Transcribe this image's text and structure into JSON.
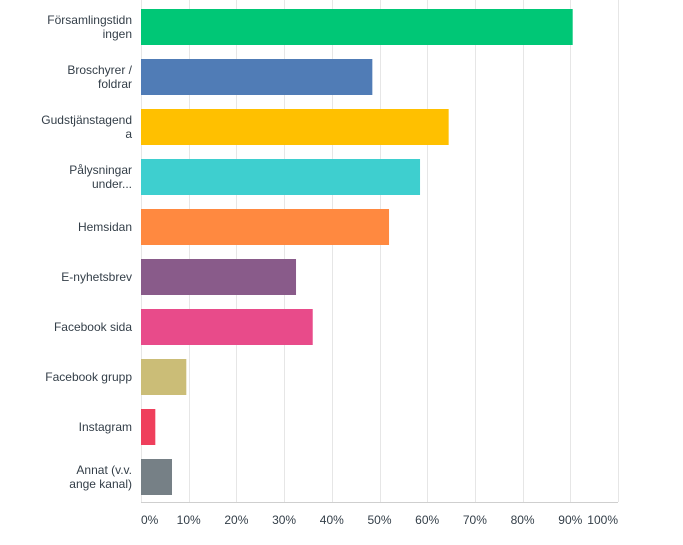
{
  "chart_data": {
    "type": "bar",
    "orientation": "horizontal",
    "categories": [
      [
        "Församlingstidn",
        "ingen"
      ],
      [
        "Broschyrer /",
        "foldrar"
      ],
      [
        "Gudstjänstagend",
        "a"
      ],
      [
        "Pålysningar",
        "under..."
      ],
      [
        "Hemsidan"
      ],
      [
        "E-nyhetsbrev"
      ],
      [
        "Facebook sida"
      ],
      [
        "Facebook grupp"
      ],
      [
        "Instagram"
      ],
      [
        "Annat (v.v.",
        "ange kanal)"
      ]
    ],
    "values": [
      90.5,
      48.5,
      64.5,
      58.5,
      52,
      32.5,
      36,
      9.5,
      3,
      6.5
    ],
    "colors": [
      "#00c776",
      "#507cb6",
      "#ffc000",
      "#3ecfcf",
      "#ff8940",
      "#895b8a",
      "#e84b8a",
      "#cbbd77",
      "#ef3f5c",
      "#768086"
    ],
    "xlim": [
      0,
      100
    ],
    "xticks": [
      "0%",
      "10%",
      "20%",
      "30%",
      "40%",
      "50%",
      "60%",
      "70%",
      "80%",
      "90%",
      "100%"
    ],
    "grid": true
  }
}
